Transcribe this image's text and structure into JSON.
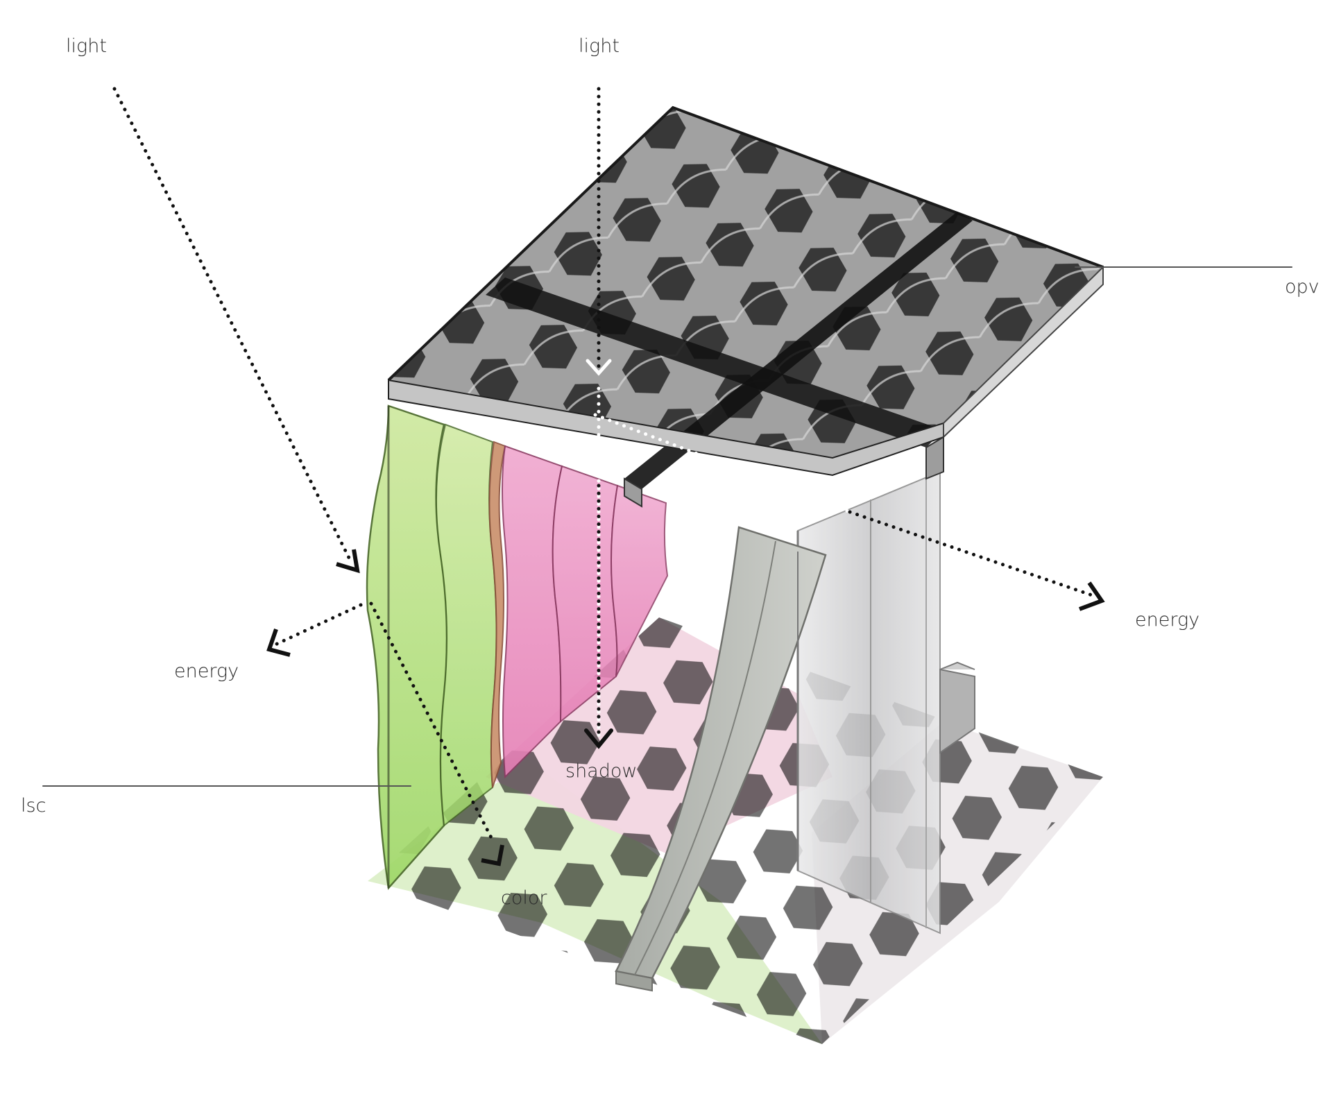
{
  "labels": {
    "light_left": "light",
    "light_center": "light",
    "opv": "opv",
    "energy_right": "energy",
    "energy_left": "energy",
    "shadow": "shadow",
    "lsc": "lsc",
    "color": "color"
  },
  "colors": {
    "opv_panel": "#3a3a3a",
    "lsc_green": "#b9e07a",
    "lsc_pink": "#e98fbf",
    "floor_green": "#dcefc8",
    "floor_pink": "#f2d6e2",
    "concrete": "#b9bcb6",
    "arrow": "#111111"
  },
  "icons": {
    "arrowhead": "chevron-arrowhead-icon"
  }
}
